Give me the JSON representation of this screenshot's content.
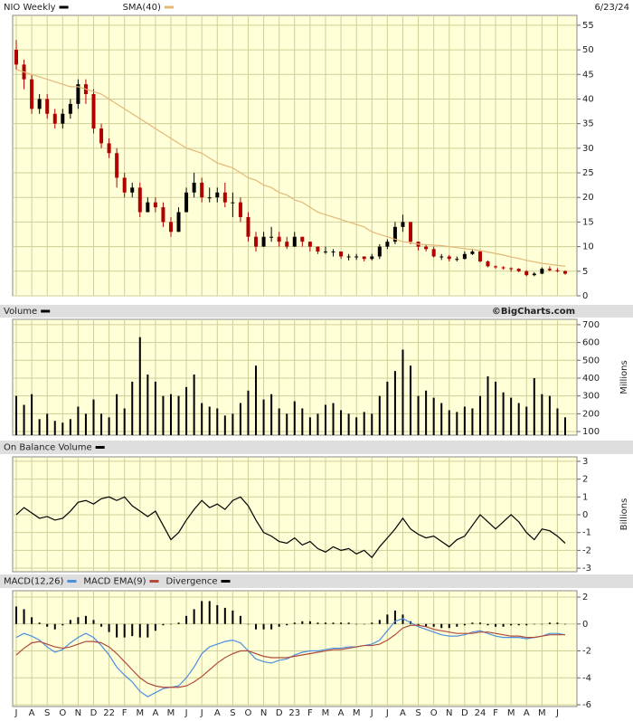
{
  "chart_data": [
    {
      "type": "candlestick",
      "date": "6/23/24",
      "ylim": [
        0,
        57
      ],
      "yticks": [
        0,
        5,
        10,
        15,
        20,
        25,
        30,
        35,
        40,
        45,
        50,
        55
      ],
      "grid": true,
      "series": [
        {
          "name": "NIO Weekly",
          "type": "candlestick",
          "color": "#000000",
          "down_color": "#b00000",
          "open": [
            50,
            47,
            44,
            38,
            40,
            37,
            35,
            37,
            39,
            43,
            41,
            34,
            31,
            29,
            24,
            21,
            22,
            17,
            19,
            18,
            15,
            13,
            17,
            21,
            23,
            20,
            20,
            21,
            19,
            19,
            16,
            12,
            10,
            12,
            12,
            11,
            10,
            12,
            11,
            10,
            9,
            9,
            9,
            8,
            8,
            8,
            7.5,
            8,
            10,
            11,
            14,
            15,
            11,
            10,
            9.5,
            8,
            8,
            7.5,
            7.5,
            8.5,
            9,
            7,
            6,
            5.8,
            5.6,
            5.5,
            5,
            4.2,
            4.5,
            5.5,
            5.2,
            5
          ],
          "high": [
            52,
            48,
            45,
            41,
            41,
            38,
            38,
            40,
            44,
            44,
            42,
            35,
            32,
            30,
            25,
            23,
            23,
            20,
            20,
            19,
            16,
            18,
            22,
            25,
            24,
            22,
            22,
            23,
            21,
            20,
            17,
            13,
            13,
            14,
            13,
            12,
            13,
            12,
            11,
            10,
            10,
            9.5,
            9,
            8.5,
            8.5,
            8,
            8.5,
            10.5,
            11.5,
            15,
            16.5,
            15,
            11,
            10.5,
            10,
            8.5,
            8.3,
            8,
            9,
            9.5,
            9.3,
            7.2,
            6.2,
            6,
            5.8,
            5.6,
            5.2,
            4.8,
            5.8,
            6,
            5.6,
            5.2
          ],
          "low": [
            46,
            42,
            37,
            37,
            36,
            34,
            34,
            36,
            38,
            39,
            33,
            30,
            28,
            22,
            20,
            20,
            16,
            17,
            17,
            14,
            12,
            13,
            17,
            20,
            19,
            19,
            19,
            18,
            16,
            15,
            11,
            9,
            10,
            11,
            10,
            9.5,
            10,
            10,
            9,
            8.5,
            8.5,
            8,
            7.5,
            7.2,
            7.3,
            7,
            7.2,
            7.5,
            9.5,
            10.5,
            13,
            10.5,
            9.2,
            9,
            7.8,
            7.3,
            7,
            7,
            7.4,
            8.3,
            6.8,
            5.8,
            5.5,
            5.3,
            4.9,
            4.8,
            4,
            4,
            4.4,
            5,
            4.8,
            4.3
          ],
          "close": [
            47,
            44,
            38,
            40,
            37,
            35,
            37,
            39,
            43,
            41,
            34,
            31,
            29,
            24,
            21,
            22,
            17,
            19,
            18,
            15,
            13,
            17,
            21,
            23,
            20,
            20,
            21,
            19,
            19,
            16,
            12,
            10,
            12,
            12,
            11,
            10,
            12,
            11,
            10,
            9,
            9,
            9,
            8,
            8,
            8,
            7.5,
            8,
            10,
            11,
            14,
            15,
            11,
            10,
            9.5,
            8,
            8,
            7.5,
            7.5,
            8.5,
            9,
            7,
            6,
            5.8,
            5.6,
            5.5,
            5,
            4.2,
            4.5,
            5.5,
            5.2,
            5,
            4.5
          ]
        },
        {
          "name": "SMA(40)",
          "type": "line",
          "color": "#e2b877",
          "values": [
            46,
            45.5,
            45,
            44.5,
            44,
            43.5,
            43,
            42.5,
            42.5,
            42,
            41.5,
            41,
            40,
            39,
            38,
            37,
            36,
            35,
            34,
            33,
            32,
            31,
            30,
            29.5,
            29,
            28,
            27,
            26.5,
            26,
            25,
            24,
            23.5,
            22.5,
            22,
            21,
            20.5,
            19.5,
            19,
            18,
            17,
            16.5,
            16,
            15.5,
            15,
            14.5,
            14,
            13,
            12.5,
            12,
            11.5,
            11,
            10.8,
            10.5,
            10.4,
            10.3,
            10.2,
            10,
            9.8,
            9.6,
            9.4,
            9.2,
            8.9,
            8.6,
            8.3,
            7.9,
            7.6,
            7.2,
            6.9,
            6.6,
            6.4,
            6.2,
            6
          ]
        }
      ]
    },
    {
      "type": "bar",
      "credit": "©BigCharts.com",
      "ylabel": "Millions",
      "ylim": [
        80,
        730
      ],
      "yticks": [
        100,
        200,
        300,
        400,
        500,
        600,
        700
      ],
      "grid": true,
      "series": [
        {
          "name": "Volume",
          "type": "bar",
          "color": "#000000",
          "values": [
            300,
            250,
            310,
            170,
            200,
            160,
            150,
            170,
            240,
            200,
            280,
            200,
            180,
            310,
            230,
            380,
            630,
            420,
            380,
            300,
            310,
            300,
            350,
            420,
            260,
            240,
            230,
            190,
            200,
            260,
            330,
            470,
            280,
            310,
            230,
            200,
            270,
            230,
            180,
            200,
            250,
            260,
            220,
            200,
            180,
            210,
            200,
            300,
            380,
            440,
            560,
            470,
            300,
            330,
            290,
            260,
            220,
            210,
            240,
            230,
            300,
            410,
            380,
            320,
            290,
            260,
            240,
            400,
            310,
            300,
            230,
            180
          ]
        }
      ]
    },
    {
      "type": "line",
      "ylabel": "Billions",
      "ylim": [
        -3.2,
        3.25
      ],
      "yticks": [
        -3,
        -2,
        -1,
        0,
        1,
        2,
        3
      ],
      "grid": true,
      "series": [
        {
          "name": "On Balance Volume",
          "type": "line",
          "color": "#000000",
          "values": [
            0,
            0.4,
            0.1,
            -0.2,
            -0.1,
            -0.3,
            -0.2,
            0.2,
            0.7,
            0.8,
            0.6,
            0.9,
            1.0,
            0.8,
            1.0,
            0.5,
            0.2,
            -0.1,
            0.2,
            -0.6,
            -1.4,
            -1.0,
            -0.3,
            0.3,
            0.8,
            0.4,
            0.6,
            0.3,
            0.8,
            1.0,
            0.5,
            -0.3,
            -1.0,
            -1.2,
            -1.5,
            -1.6,
            -1.3,
            -1.7,
            -1.5,
            -1.9,
            -2.1,
            -1.8,
            -2.0,
            -1.9,
            -2.2,
            -2.0,
            -2.4,
            -1.8,
            -1.3,
            -0.8,
            -0.2,
            -0.8,
            -1.1,
            -1.3,
            -1.2,
            -1.5,
            -1.8,
            -1.4,
            -1.2,
            -0.6,
            0,
            -0.4,
            -0.8,
            -0.4,
            0,
            -0.4,
            -1.0,
            -1.4,
            -0.8,
            -0.9,
            -1.2,
            -1.6
          ]
        }
      ]
    },
    {
      "type": "line",
      "ylim": [
        -6.13,
        2.47
      ],
      "yticks": [
        -6,
        -4,
        -2,
        0,
        2
      ],
      "grid": true,
      "categories": [
        "J",
        null,
        "A",
        null,
        "S",
        null,
        "O",
        null,
        "N",
        null,
        "D",
        null,
        "22",
        null,
        "F",
        null,
        "M",
        null,
        "A",
        null,
        "M",
        null,
        "J",
        null,
        "J",
        null,
        "A",
        null,
        "S",
        null,
        "O",
        null,
        "N",
        null,
        "D",
        null,
        "23",
        null,
        "F",
        null,
        "M",
        null,
        "A",
        null,
        "M",
        null,
        "J",
        null,
        "J",
        null,
        "A",
        null,
        "S",
        null,
        "O",
        null,
        "N",
        null,
        "D",
        null,
        "24",
        null,
        "F",
        null,
        "M",
        null,
        "A",
        null,
        "M",
        null,
        "J",
        null
      ],
      "series": [
        {
          "name": "MACD(12,26)",
          "type": "line",
          "color": "#4a8fe0",
          "values": [
            -1.0,
            -0.7,
            -0.9,
            -1.2,
            -1.7,
            -2.1,
            -1.9,
            -1.4,
            -1.0,
            -0.7,
            -1.0,
            -1.6,
            -2.3,
            -3.2,
            -3.8,
            -4.3,
            -5.0,
            -5.4,
            -5.1,
            -4.8,
            -4.7,
            -4.6,
            -4.0,
            -3.2,
            -2.2,
            -1.7,
            -1.5,
            -1.3,
            -1.2,
            -1.4,
            -2.0,
            -2.6,
            -2.8,
            -2.9,
            -2.7,
            -2.6,
            -2.3,
            -2.1,
            -2.0,
            -2.0,
            -1.9,
            -1.8,
            -1.8,
            -1.7,
            -1.7,
            -1.6,
            -1.5,
            -1.2,
            -0.5,
            0.2,
            0.4,
            0.1,
            -0.2,
            -0.4,
            -0.6,
            -0.8,
            -0.9,
            -0.9,
            -0.8,
            -0.6,
            -0.5,
            -0.7,
            -0.9,
            -1.0,
            -1.0,
            -1.0,
            -1.1,
            -1.0,
            -0.9,
            -0.7,
            -0.7,
            -0.8
          ]
        },
        {
          "name": "MACD EMA(9)",
          "type": "line",
          "color": "#b04a3a",
          "values": [
            -2.3,
            -1.8,
            -1.4,
            -1.3,
            -1.5,
            -1.7,
            -1.8,
            -1.7,
            -1.5,
            -1.3,
            -1.3,
            -1.4,
            -1.7,
            -2.2,
            -2.8,
            -3.4,
            -4.0,
            -4.4,
            -4.6,
            -4.7,
            -4.7,
            -4.7,
            -4.6,
            -4.3,
            -3.9,
            -3.4,
            -2.9,
            -2.5,
            -2.2,
            -2.0,
            -2.0,
            -2.2,
            -2.4,
            -2.5,
            -2.5,
            -2.5,
            -2.4,
            -2.3,
            -2.2,
            -2.1,
            -2.0,
            -1.9,
            -1.9,
            -1.8,
            -1.7,
            -1.6,
            -1.6,
            -1.5,
            -1.2,
            -0.8,
            -0.3,
            -0.1,
            -0.1,
            -0.2,
            -0.4,
            -0.5,
            -0.6,
            -0.7,
            -0.7,
            -0.7,
            -0.6,
            -0.6,
            -0.7,
            -0.8,
            -0.9,
            -0.9,
            -1.0,
            -1.0,
            -0.9,
            -0.8,
            -0.8,
            -0.8
          ]
        },
        {
          "name": "Divergence",
          "type": "bar",
          "color": "#000000",
          "values": [
            1.3,
            1.1,
            0.5,
            0.1,
            -0.2,
            -0.4,
            -0.1,
            0.3,
            0.5,
            0.6,
            0.3,
            -0.2,
            -0.6,
            -1.0,
            -1.0,
            -0.9,
            -1.0,
            -1.0,
            -0.5,
            -0.1,
            0.0,
            0.1,
            0.6,
            1.1,
            1.7,
            1.7,
            1.4,
            1.2,
            1.0,
            0.6,
            0,
            -0.4,
            -0.4,
            -0.4,
            -0.2,
            -0.1,
            0.1,
            0.2,
            0.2,
            0.1,
            0.1,
            0.1,
            0.1,
            0.1,
            0,
            0,
            0.1,
            0.3,
            0.7,
            1.0,
            0.7,
            0.2,
            -0.1,
            -0.2,
            -0.2,
            -0.3,
            -0.3,
            -0.2,
            -0.1,
            0.1,
            0.1,
            -0.1,
            -0.2,
            -0.2,
            -0.1,
            -0.1,
            -0.1,
            0,
            0,
            0.1,
            0.1,
            0
          ]
        }
      ]
    }
  ]
}
